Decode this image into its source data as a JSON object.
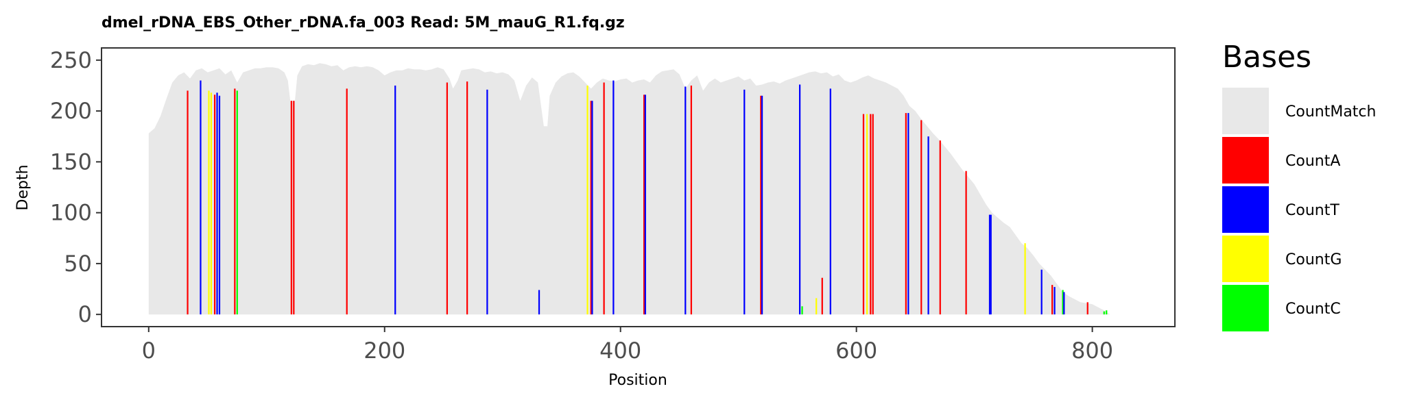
{
  "chart_data": {
    "type": "bar",
    "title": "dmel_rDNA_EBS_Other_rDNA.fa_003   Read: 5M_mauG_R1.fq.gz",
    "xlabel": "Position",
    "ylabel": "Depth",
    "xlim": [
      -40,
      870
    ],
    "ylim": [
      -12,
      262
    ],
    "xticks": [
      0,
      200,
      400,
      600,
      800
    ],
    "yticks": [
      0,
      50,
      100,
      150,
      200,
      250
    ],
    "grid": false,
    "legend": {
      "title": "Bases",
      "position": "right",
      "entries": [
        "CountMatch",
        "CountA",
        "CountT",
        "CountG",
        "CountC"
      ]
    },
    "colors": {
      "CountMatch": "#e8e8e8",
      "CountA": "#ff0000",
      "CountT": "#0000ff",
      "CountG": "#ffff00",
      "CountC": "#00ff00"
    },
    "coverage_profile": [
      [
        0,
        178
      ],
      [
        5,
        183
      ],
      [
        10,
        195
      ],
      [
        15,
        212
      ],
      [
        20,
        228
      ],
      [
        25,
        235
      ],
      [
        30,
        238
      ],
      [
        35,
        232
      ],
      [
        40,
        240
      ],
      [
        45,
        242
      ],
      [
        50,
        238
      ],
      [
        55,
        240
      ],
      [
        60,
        242
      ],
      [
        65,
        236
      ],
      [
        70,
        240
      ],
      [
        75,
        228
      ],
      [
        80,
        238
      ],
      [
        85,
        240
      ],
      [
        90,
        242
      ],
      [
        95,
        242
      ],
      [
        100,
        243
      ],
      [
        105,
        243
      ],
      [
        110,
        242
      ],
      [
        115,
        238
      ],
      [
        118,
        230
      ],
      [
        120,
        210
      ],
      [
        124,
        210
      ],
      [
        126,
        235
      ],
      [
        130,
        244
      ],
      [
        135,
        246
      ],
      [
        140,
        245
      ],
      [
        145,
        247
      ],
      [
        150,
        246
      ],
      [
        155,
        244
      ],
      [
        160,
        245
      ],
      [
        165,
        240
      ],
      [
        170,
        243
      ],
      [
        175,
        244
      ],
      [
        180,
        243
      ],
      [
        185,
        244
      ],
      [
        190,
        243
      ],
      [
        195,
        240
      ],
      [
        200,
        235
      ],
      [
        205,
        238
      ],
      [
        210,
        240
      ],
      [
        215,
        240
      ],
      [
        220,
        242
      ],
      [
        225,
        241
      ],
      [
        230,
        241
      ],
      [
        235,
        240
      ],
      [
        240,
        241
      ],
      [
        245,
        243
      ],
      [
        250,
        241
      ],
      [
        255,
        232
      ],
      [
        258,
        222
      ],
      [
        262,
        230
      ],
      [
        265,
        240
      ],
      [
        270,
        241
      ],
      [
        275,
        242
      ],
      [
        280,
        241
      ],
      [
        285,
        238
      ],
      [
        290,
        239
      ],
      [
        295,
        237
      ],
      [
        300,
        238
      ],
      [
        305,
        236
      ],
      [
        310,
        230
      ],
      [
        315,
        210
      ],
      [
        320,
        225
      ],
      [
        325,
        233
      ],
      [
        330,
        228
      ],
      [
        335,
        185
      ],
      [
        338,
        185
      ],
      [
        340,
        215
      ],
      [
        345,
        228
      ],
      [
        350,
        234
      ],
      [
        355,
        237
      ],
      [
        360,
        238
      ],
      [
        365,
        234
      ],
      [
        370,
        228
      ],
      [
        375,
        222
      ],
      [
        380,
        228
      ],
      [
        385,
        232
      ],
      [
        390,
        230
      ],
      [
        395,
        229
      ],
      [
        400,
        231
      ],
      [
        405,
        232
      ],
      [
        410,
        228
      ],
      [
        415,
        230
      ],
      [
        420,
        231
      ],
      [
        425,
        228
      ],
      [
        430,
        235
      ],
      [
        435,
        239
      ],
      [
        440,
        240
      ],
      [
        445,
        241
      ],
      [
        450,
        236
      ],
      [
        455,
        222
      ],
      [
        460,
        230
      ],
      [
        465,
        235
      ],
      [
        470,
        220
      ],
      [
        475,
        228
      ],
      [
        480,
        232
      ],
      [
        485,
        228
      ],
      [
        490,
        230
      ],
      [
        495,
        232
      ],
      [
        500,
        234
      ],
      [
        505,
        230
      ],
      [
        510,
        232
      ],
      [
        515,
        225
      ],
      [
        520,
        226
      ],
      [
        525,
        228
      ],
      [
        530,
        229
      ],
      [
        535,
        227
      ],
      [
        540,
        230
      ],
      [
        545,
        232
      ],
      [
        550,
        234
      ],
      [
        555,
        236
      ],
      [
        560,
        238
      ],
      [
        565,
        239
      ],
      [
        570,
        237
      ],
      [
        575,
        238
      ],
      [
        580,
        234
      ],
      [
        585,
        236
      ],
      [
        590,
        230
      ],
      [
        595,
        228
      ],
      [
        600,
        230
      ],
      [
        605,
        233
      ],
      [
        610,
        235
      ],
      [
        615,
        232
      ],
      [
        620,
        230
      ],
      [
        625,
        228
      ],
      [
        630,
        225
      ],
      [
        635,
        222
      ],
      [
        640,
        215
      ],
      [
        645,
        205
      ],
      [
        650,
        200
      ],
      [
        655,
        192
      ],
      [
        660,
        185
      ],
      [
        665,
        178
      ],
      [
        670,
        172
      ],
      [
        675,
        165
      ],
      [
        680,
        158
      ],
      [
        685,
        150
      ],
      [
        690,
        142
      ],
      [
        695,
        135
      ],
      [
        700,
        128
      ],
      [
        705,
        118
      ],
      [
        710,
        108
      ],
      [
        715,
        100
      ],
      [
        720,
        95
      ],
      [
        725,
        90
      ],
      [
        730,
        86
      ],
      [
        735,
        78
      ],
      [
        740,
        70
      ],
      [
        745,
        65
      ],
      [
        750,
        58
      ],
      [
        755,
        50
      ],
      [
        760,
        44
      ],
      [
        765,
        38
      ],
      [
        770,
        30
      ],
      [
        775,
        22
      ],
      [
        780,
        18
      ],
      [
        785,
        15
      ],
      [
        790,
        12
      ],
      [
        795,
        11
      ],
      [
        800,
        10
      ],
      [
        805,
        7
      ],
      [
        810,
        4
      ],
      [
        815,
        0
      ]
    ],
    "mismatch_bars": [
      {
        "base": "A",
        "x": 33,
        "y": 220
      },
      {
        "base": "T",
        "x": 44,
        "y": 230
      },
      {
        "base": "G",
        "x": 51,
        "y": 220
      },
      {
        "base": "G",
        "x": 53,
        "y": 218
      },
      {
        "base": "A",
        "x": 56,
        "y": 216
      },
      {
        "base": "T",
        "x": 58,
        "y": 218
      },
      {
        "base": "T",
        "x": 60,
        "y": 215
      },
      {
        "base": "A",
        "x": 73,
        "y": 222
      },
      {
        "base": "C",
        "x": 75,
        "y": 220
      },
      {
        "base": "A",
        "x": 121,
        "y": 210
      },
      {
        "base": "A",
        "x": 123,
        "y": 210
      },
      {
        "base": "A",
        "x": 168,
        "y": 222
      },
      {
        "base": "T",
        "x": 209,
        "y": 225
      },
      {
        "base": "A",
        "x": 253,
        "y": 228
      },
      {
        "base": "A",
        "x": 270,
        "y": 229
      },
      {
        "base": "T",
        "x": 287,
        "y": 221
      },
      {
        "base": "T",
        "x": 331,
        "y": 24
      },
      {
        "base": "G",
        "x": 372,
        "y": 225
      },
      {
        "base": "A",
        "x": 375,
        "y": 210
      },
      {
        "base": "T",
        "x": 376,
        "y": 210
      },
      {
        "base": "A",
        "x": 386,
        "y": 228
      },
      {
        "base": "T",
        "x": 394,
        "y": 230
      },
      {
        "base": "A",
        "x": 420,
        "y": 216
      },
      {
        "base": "T",
        "x": 421,
        "y": 216
      },
      {
        "base": "T",
        "x": 455,
        "y": 224
      },
      {
        "base": "A",
        "x": 460,
        "y": 225
      },
      {
        "base": "T",
        "x": 505,
        "y": 221
      },
      {
        "base": "A",
        "x": 519,
        "y": 215
      },
      {
        "base": "T",
        "x": 520,
        "y": 215
      },
      {
        "base": "T",
        "x": 552,
        "y": 226
      },
      {
        "base": "C",
        "x": 554,
        "y": 8
      },
      {
        "base": "G",
        "x": 566,
        "y": 16
      },
      {
        "base": "A",
        "x": 571,
        "y": 36
      },
      {
        "base": "T",
        "x": 578,
        "y": 222
      },
      {
        "base": "A",
        "x": 606,
        "y": 197
      },
      {
        "base": "G",
        "x": 609,
        "y": 197
      },
      {
        "base": "A",
        "x": 612,
        "y": 197
      },
      {
        "base": "A",
        "x": 614,
        "y": 197
      },
      {
        "base": "A",
        "x": 642,
        "y": 198
      },
      {
        "base": "T",
        "x": 644,
        "y": 198
      },
      {
        "base": "A",
        "x": 655,
        "y": 191
      },
      {
        "base": "T",
        "x": 661,
        "y": 175
      },
      {
        "base": "A",
        "x": 671,
        "y": 171
      },
      {
        "base": "A",
        "x": 693,
        "y": 141
      },
      {
        "base": "T",
        "x": 713,
        "y": 98
      },
      {
        "base": "T",
        "x": 714,
        "y": 98
      },
      {
        "base": "G",
        "x": 743,
        "y": 70
      },
      {
        "base": "T",
        "x": 757,
        "y": 44
      },
      {
        "base": "A",
        "x": 766,
        "y": 29
      },
      {
        "base": "T",
        "x": 768,
        "y": 27
      },
      {
        "base": "C",
        "x": 775,
        "y": 24
      },
      {
        "base": "T",
        "x": 776,
        "y": 22
      },
      {
        "base": "A",
        "x": 796,
        "y": 12
      },
      {
        "base": "C",
        "x": 810,
        "y": 3
      },
      {
        "base": "C",
        "x": 812,
        "y": 4
      }
    ]
  }
}
